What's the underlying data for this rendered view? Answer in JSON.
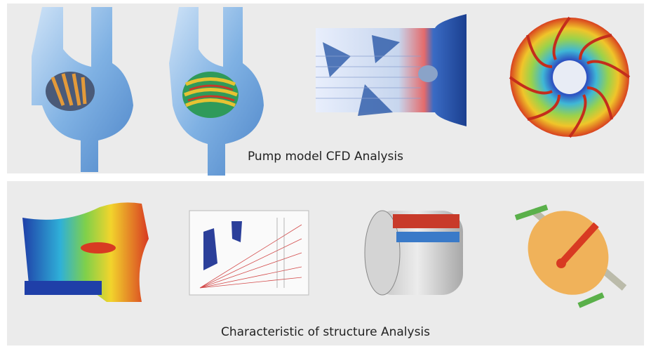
{
  "panels": [
    {
      "caption": "Pump model CFD Analysis"
    },
    {
      "caption": "Characteristic of structure Analysis"
    }
  ]
}
